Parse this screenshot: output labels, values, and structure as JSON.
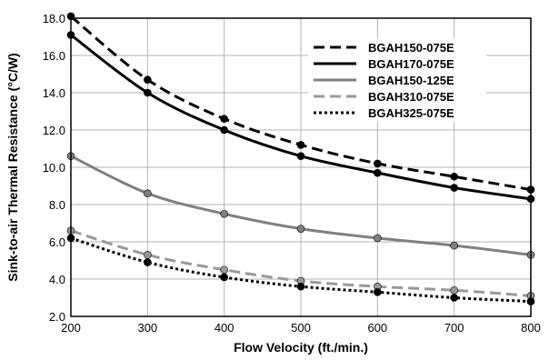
{
  "chart_data": {
    "type": "line",
    "xlabel": "Flow Velocity (ft./min.)",
    "ylabel": "Sink-to-air Thermal Resistance (°C/W)",
    "xlim": [
      200,
      800
    ],
    "ylim": [
      2.0,
      18.0
    ],
    "x_ticks": [
      200,
      300,
      400,
      500,
      600,
      700,
      800
    ],
    "y_ticks": [
      "2.0",
      "4.0",
      "6.0",
      "8.0",
      "10.0",
      "12.0",
      "14.0",
      "16.0",
      "18.0"
    ],
    "grid": true,
    "legend_position": "top-right",
    "x": [
      200,
      300,
      400,
      500,
      600,
      700,
      800
    ],
    "series": [
      {
        "name": "BGAH150-075E",
        "values": [
          18.1,
          14.7,
          12.6,
          11.2,
          10.2,
          9.5,
          8.8
        ],
        "color": "#000000",
        "style": "dashed"
      },
      {
        "name": "BGAH170-075E",
        "values": [
          17.1,
          14.0,
          12.0,
          10.6,
          9.7,
          8.9,
          8.3
        ],
        "color": "#000000",
        "style": "solid"
      },
      {
        "name": "BGAH150-125E",
        "values": [
          10.6,
          8.6,
          7.5,
          6.7,
          6.2,
          5.8,
          5.3
        ],
        "color": "#808080",
        "style": "solid"
      },
      {
        "name": "BGAH310-075E",
        "values": [
          6.6,
          5.3,
          4.5,
          3.9,
          3.6,
          3.4,
          3.1
        ],
        "color": "#999999",
        "style": "dashed"
      },
      {
        "name": "BGAH325-075E",
        "values": [
          6.2,
          4.9,
          4.1,
          3.6,
          3.3,
          3.0,
          2.8
        ],
        "color": "#000000",
        "style": "dotted"
      }
    ]
  }
}
